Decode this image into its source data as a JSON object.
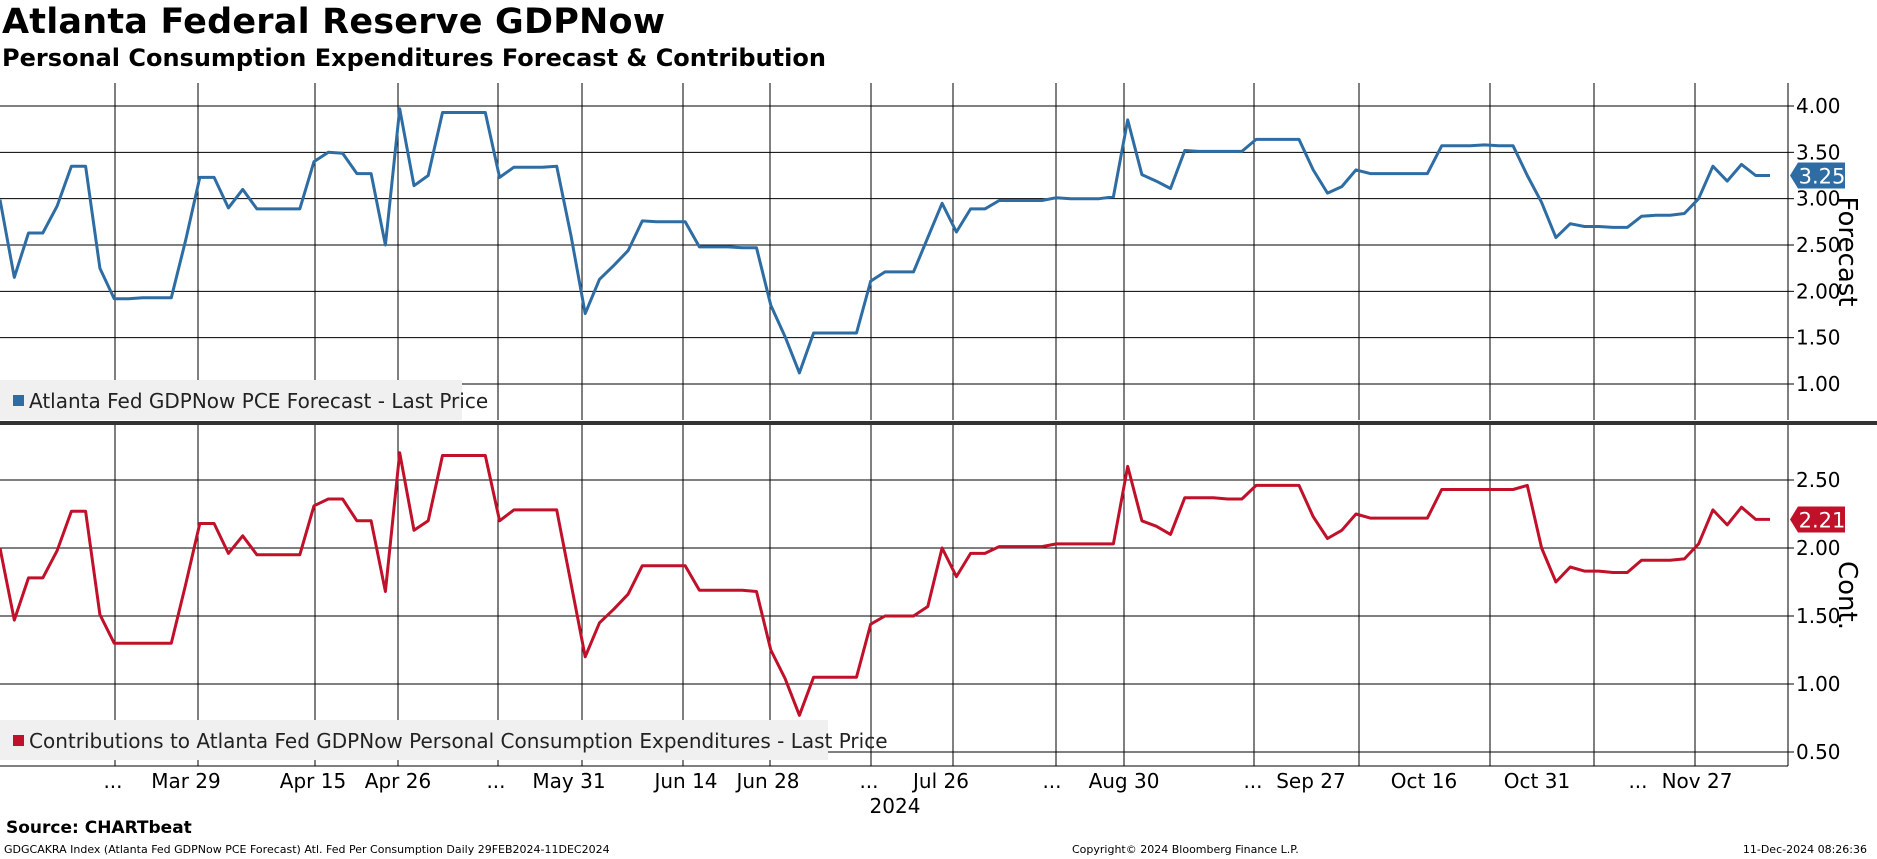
{
  "header": {
    "title": "Atlanta Federal Reserve GDPNow",
    "subtitle": "Personal Consumption Expenditures Forecast & Contribution"
  },
  "footer": {
    "source": "Source: CHARTbeat",
    "description": "GDGCAKRA Index (Atlanta Fed GDPNow PCE Forecast) Atl. Fed Per Consumption  Daily 29FEB2024-11DEC2024",
    "copyright": "Copyright© 2024 Bloomberg Finance L.P.",
    "timestamp": "11-Dec-2024 08:26:36"
  },
  "x_axis": {
    "year_label": "2024",
    "tick_labels": [
      "...",
      "Mar 29",
      "Apr 15",
      "Apr 26",
      "...",
      "May 31",
      "Jun 14",
      "Jun 28",
      "...",
      "Jul 26",
      "...",
      "Aug 30",
      "...",
      "Sep 27",
      "Oct 16",
      "Oct 31",
      "...",
      "Nov 27"
    ]
  },
  "chart_data": [
    {
      "type": "line",
      "panel": "top",
      "ylabel": "Forecast",
      "ylim": [
        0.6,
        4.3
      ],
      "yticks": [
        "1.00",
        "1.50",
        "2.00",
        "2.50",
        "3.00",
        "3.50",
        "4.00"
      ],
      "series": [
        {
          "name": "Atlanta Fed GDPNow PCE Forecast - Last Price",
          "color": "#2e6da4",
          "last_value_label": "3.25",
          "values": [
            2.99,
            2.15,
            2.63,
            2.63,
            2.92,
            3.35,
            3.35,
            2.25,
            1.92,
            1.92,
            1.93,
            1.93,
            1.93,
            2.55,
            3.23,
            3.23,
            2.9,
            3.1,
            2.89,
            2.89,
            2.89,
            2.89,
            3.4,
            3.5,
            3.49,
            3.27,
            3.27,
            2.5,
            3.97,
            3.14,
            3.25,
            3.93,
            3.93,
            3.93,
            3.93,
            3.23,
            3.34,
            3.34,
            3.34,
            3.35,
            2.6,
            1.76,
            2.13,
            2.28,
            2.44,
            2.76,
            2.75,
            2.75,
            2.75,
            2.48,
            2.48,
            2.48,
            2.47,
            2.47,
            1.85,
            1.51,
            1.12,
            1.55,
            1.55,
            1.55,
            1.55,
            2.11,
            2.21,
            2.21,
            2.21,
            2.58,
            2.95,
            2.64,
            2.89,
            2.89,
            2.98,
            2.98,
            2.98,
            2.98,
            3.01,
            3.0,
            3.0,
            3.0,
            3.02,
            3.85,
            3.26,
            3.19,
            3.11,
            3.52,
            3.51,
            3.51,
            3.51,
            3.51,
            3.64,
            3.64,
            3.64,
            3.64,
            3.31,
            3.06,
            3.13,
            3.31,
            3.27,
            3.27,
            3.27,
            3.27,
            3.27,
            3.57,
            3.57,
            3.57,
            3.58,
            3.57,
            3.57,
            3.25,
            2.96,
            2.58,
            2.73,
            2.7,
            2.7,
            2.69,
            2.69,
            2.81,
            2.82,
            2.82,
            2.84,
            3.0,
            3.35,
            3.19,
            3.37,
            3.25,
            3.25
          ]
        }
      ]
    },
    {
      "type": "line",
      "panel": "bottom",
      "ylabel": "Cont.",
      "ylim": [
        0.45,
        2.95
      ],
      "yticks": [
        "0.50",
        "1.00",
        "1.50",
        "2.00",
        "2.50"
      ],
      "series": [
        {
          "name": "Contributions to Atlanta Fed GDPNow Personal Consumption Expenditures - Last Price",
          "color": "#c0102a",
          "last_value_label": "2.21",
          "values": [
            2.0,
            1.47,
            1.78,
            1.78,
            1.98,
            2.27,
            2.27,
            1.51,
            1.3,
            1.3,
            1.3,
            1.3,
            1.3,
            1.73,
            2.18,
            2.18,
            1.96,
            2.09,
            1.95,
            1.95,
            1.95,
            1.95,
            2.31,
            2.36,
            2.36,
            2.2,
            2.2,
            1.68,
            2.7,
            2.13,
            2.2,
            2.68,
            2.68,
            2.68,
            2.68,
            2.2,
            2.28,
            2.28,
            2.28,
            2.28,
            1.74,
            1.2,
            1.45,
            1.55,
            1.66,
            1.87,
            1.87,
            1.87,
            1.87,
            1.69,
            1.69,
            1.69,
            1.69,
            1.68,
            1.25,
            1.04,
            0.77,
            1.05,
            1.05,
            1.05,
            1.05,
            1.44,
            1.5,
            1.5,
            1.5,
            1.57,
            2.0,
            1.79,
            1.96,
            1.96,
            2.01,
            2.01,
            2.01,
            2.01,
            2.03,
            2.03,
            2.03,
            2.03,
            2.03,
            2.6,
            2.2,
            2.16,
            2.1,
            2.37,
            2.37,
            2.37,
            2.36,
            2.36,
            2.46,
            2.46,
            2.46,
            2.46,
            2.23,
            2.07,
            2.13,
            2.25,
            2.22,
            2.22,
            2.22,
            2.22,
            2.22,
            2.43,
            2.43,
            2.43,
            2.43,
            2.43,
            2.43,
            2.46,
            2.0,
            1.75,
            1.86,
            1.83,
            1.83,
            1.82,
            1.82,
            1.91,
            1.91,
            1.91,
            1.92,
            2.03,
            2.28,
            2.17,
            2.3,
            2.21,
            2.21
          ]
        }
      ]
    }
  ]
}
